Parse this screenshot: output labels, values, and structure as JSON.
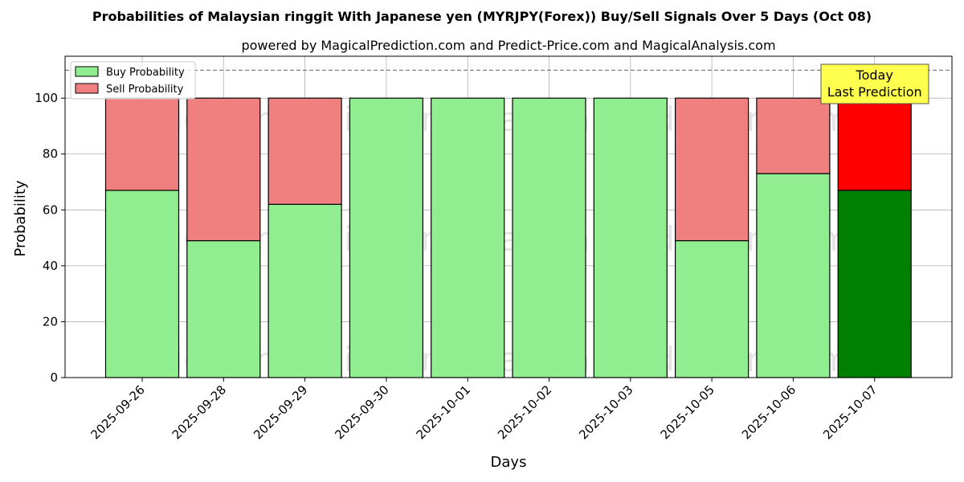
{
  "chart_data": {
    "type": "bar",
    "stacked": true,
    "title": "Probabilities of Malaysian ringgit With Japanese yen (MYRJPY(Forex)) Buy/Sell Signals Over 5 Days (Oct 08)",
    "subtitle": "powered by MagicalPrediction.com and Predict-Price.com and MagicalAnalysis.com",
    "xlabel": "Days",
    "ylabel": "Probability",
    "ylim": [
      0,
      115
    ],
    "yticks": [
      "0",
      "20",
      "40",
      "60",
      "80",
      "100"
    ],
    "reference_line": 110,
    "grid": true,
    "legend_position": "top-left",
    "categories": [
      "2025-09-26",
      "2025-09-28",
      "2025-09-29",
      "2025-09-30",
      "2025-10-01",
      "2025-10-02",
      "2025-10-03",
      "2025-10-05",
      "2025-10-06",
      "2025-10-07"
    ],
    "series": [
      {
        "name": "Buy Probability",
        "color": "#90ee90",
        "highlight_color": "#008000",
        "values": [
          67,
          49,
          62,
          100,
          100,
          100,
          100,
          49,
          73,
          67
        ]
      },
      {
        "name": "Sell Probability",
        "color": "#f08080",
        "highlight_color": "#ff0000",
        "values": [
          33,
          51,
          38,
          0,
          0,
          0,
          0,
          51,
          27,
          33
        ]
      }
    ],
    "highlight_index": 9,
    "annotation": {
      "lines": [
        "Today",
        "Last Prediction"
      ],
      "color": "#ffff4d"
    },
    "watermarks": [
      "MagicalAnalysis.com",
      "MagicalPrediction.com"
    ]
  }
}
